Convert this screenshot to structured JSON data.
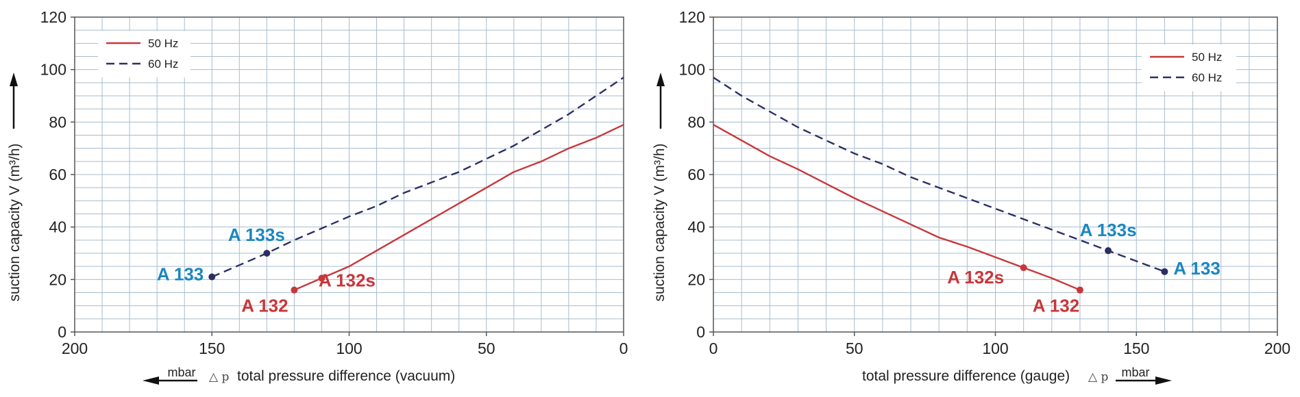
{
  "colors": {
    "grid": "#a7bccd",
    "axis": "#555555",
    "hz50": "#c8373a",
    "hz60": "#2b2f63",
    "label_a133": "#1a87c0",
    "label_a132": "#c8373a"
  },
  "chart_data": [
    {
      "type": "line",
      "xlabel": "total pressure difference (vacuum)",
      "xunit": "mbar",
      "delta_symbol": "△ p",
      "ylabel": "suction capacity V (m³/h)",
      "xlim": [
        200,
        0
      ],
      "ylim": [
        0,
        120
      ],
      "x_reversed": true,
      "x_ticks": [
        200,
        150,
        100,
        50,
        0
      ],
      "y_ticks": [
        0,
        20,
        40,
        60,
        80,
        100,
        120
      ],
      "grid": true,
      "legend": {
        "placement": "top-left",
        "entries": [
          "50 Hz",
          "60 Hz"
        ]
      },
      "series": [
        {
          "name": "50 Hz",
          "style": "solid",
          "x": [
            120,
            110,
            100,
            90,
            80,
            70,
            60,
            50,
            40,
            30,
            20,
            10,
            0
          ],
          "y": [
            16,
            20.5,
            25,
            31,
            37,
            43,
            49,
            55,
            61,
            65,
            70,
            74,
            79
          ]
        },
        {
          "name": "60 Hz",
          "style": "dashed",
          "x": [
            150,
            140,
            130,
            120,
            110,
            100,
            90,
            80,
            70,
            60,
            50,
            40,
            30,
            20,
            10,
            0
          ],
          "y": [
            21,
            25.5,
            30,
            35,
            39.5,
            44,
            48,
            53,
            57,
            61,
            66,
            71,
            77,
            83,
            90,
            97
          ]
        }
      ],
      "points": [
        {
          "label": "A 133",
          "x": 150,
          "y": 21,
          "series": "60 Hz"
        },
        {
          "label": "A 133s",
          "x": 130,
          "y": 30,
          "series": "60 Hz"
        },
        {
          "label": "A 132",
          "x": 120,
          "y": 16,
          "series": "50 Hz"
        },
        {
          "label": "A 132s",
          "x": 110,
          "y": 20.5,
          "series": "50 Hz"
        }
      ]
    },
    {
      "type": "line",
      "xlabel": "total pressure difference (gauge)",
      "xunit": "mbar",
      "delta_symbol": "△ p",
      "ylabel": "suction capacity V (m³/h)",
      "xlim": [
        0,
        200
      ],
      "ylim": [
        0,
        120
      ],
      "x_reversed": false,
      "x_ticks": [
        0,
        50,
        100,
        150,
        200
      ],
      "y_ticks": [
        0,
        20,
        40,
        60,
        80,
        100,
        120
      ],
      "grid": true,
      "legend": {
        "placement": "top-right",
        "entries": [
          "50 Hz",
          "60 Hz"
        ]
      },
      "series": [
        {
          "name": "50 Hz",
          "style": "solid",
          "x": [
            0,
            10,
            20,
            30,
            40,
            50,
            60,
            70,
            80,
            90,
            100,
            110,
            120,
            130
          ],
          "y": [
            79,
            73,
            67,
            62,
            56.5,
            51,
            46,
            41,
            36,
            32.5,
            28.5,
            24.5,
            20.5,
            16
          ]
        },
        {
          "name": "60 Hz",
          "style": "dashed",
          "x": [
            0,
            10,
            20,
            30,
            40,
            50,
            60,
            70,
            80,
            90,
            100,
            110,
            120,
            130,
            140,
            150,
            160
          ],
          "y": [
            97,
            90,
            84,
            78,
            73,
            68,
            64,
            59,
            55,
            51,
            47,
            43,
            39,
            35,
            31,
            27,
            23
          ]
        }
      ],
      "points": [
        {
          "label": "A 132s",
          "x": 110,
          "y": 24.5,
          "series": "50 Hz"
        },
        {
          "label": "A 132",
          "x": 130,
          "y": 16,
          "series": "50 Hz"
        },
        {
          "label": "A 133s",
          "x": 140,
          "y": 31,
          "series": "60 Hz"
        },
        {
          "label": "A 133",
          "x": 160,
          "y": 23,
          "series": "60 Hz"
        }
      ]
    }
  ]
}
